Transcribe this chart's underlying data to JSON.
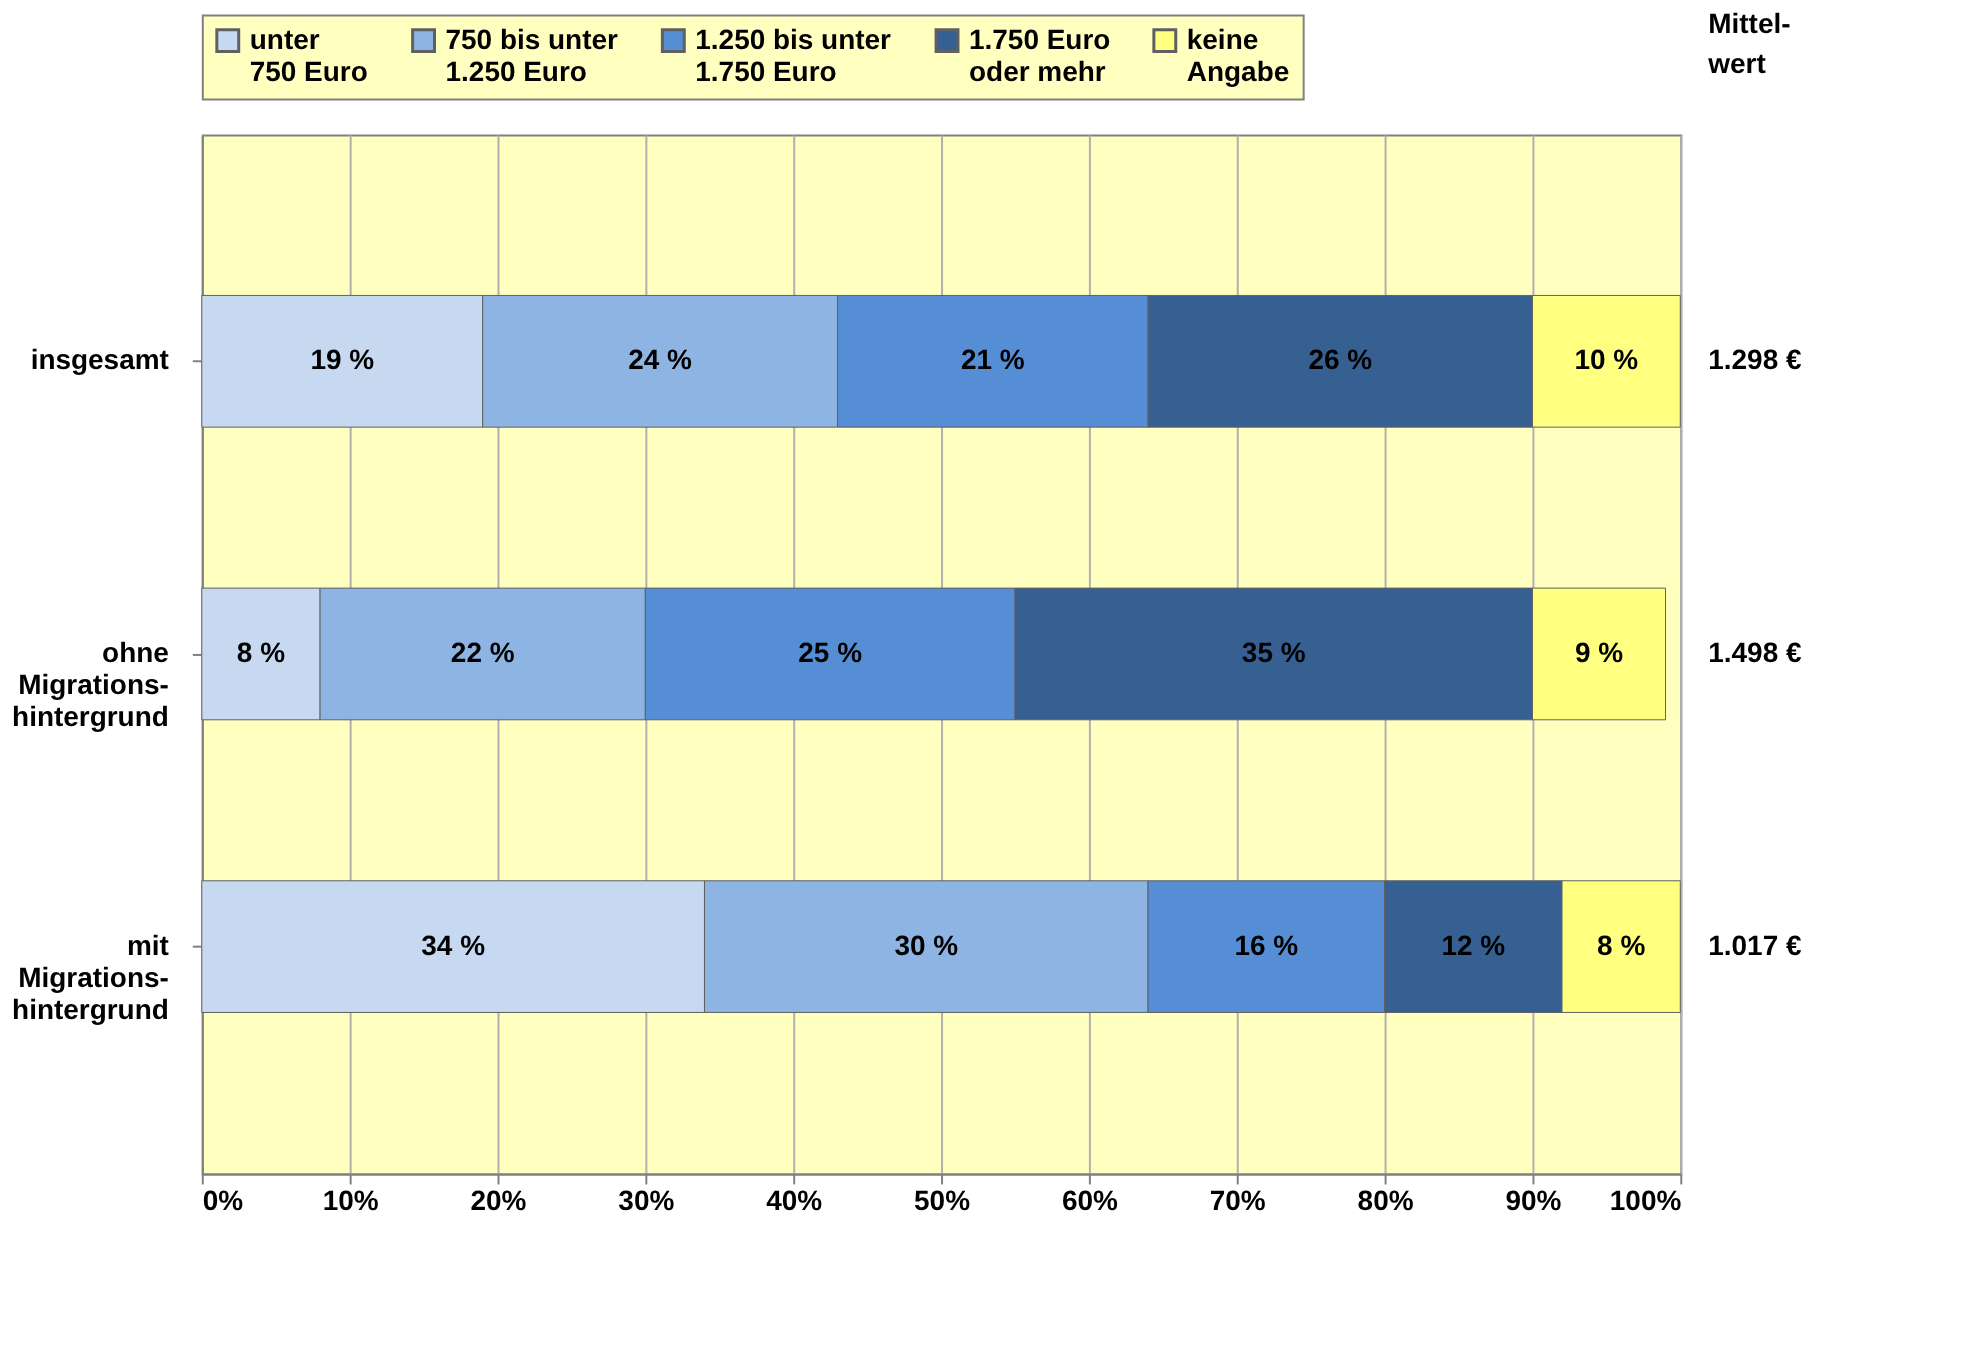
{
  "chart_data": {
    "type": "bar",
    "orientation": "horizontal",
    "stacked": true,
    "categories": [
      "insgesamt",
      "ohne\nMigrations-\nhintergrund",
      "mit\nMigrations-\nhintergrund"
    ],
    "series": [
      {
        "name": "unter\n750 Euro",
        "color": "#c6d9f1",
        "values": [
          19,
          8,
          34
        ],
        "value_labels": [
          "19 %",
          "8 %",
          "34 %"
        ]
      },
      {
        "name": "750 bis unter\n1.250 Euro",
        "color": "#8db4e2",
        "values": [
          24,
          22,
          30
        ],
        "value_labels": [
          "24 %",
          "22 %",
          "30 %"
        ]
      },
      {
        "name": "1.250 bis unter\n1.750 Euro",
        "color": "#558ed5",
        "values": [
          21,
          25,
          16
        ],
        "value_labels": [
          "21 %",
          "25 %",
          "16 %"
        ]
      },
      {
        "name": "1.750 Euro\noder mehr",
        "color": "#366092",
        "values": [
          26,
          35,
          12
        ],
        "value_labels": [
          "26 %",
          "35 %",
          "12 %"
        ]
      },
      {
        "name": "keine\nAngabe",
        "color": "#ffff80",
        "values": [
          10,
          9,
          8
        ],
        "value_labels": [
          "10 %",
          "9 %",
          "8 %"
        ]
      }
    ],
    "xlim": [
      0,
      100
    ],
    "xticks": [
      {
        "value": 0,
        "label": "0%"
      },
      {
        "value": 10,
        "label": "10%"
      },
      {
        "value": 20,
        "label": "20%"
      },
      {
        "value": 30,
        "label": "30%"
      },
      {
        "value": 40,
        "label": "40%"
      },
      {
        "value": 50,
        "label": "50%"
      },
      {
        "value": 60,
        "label": "60%"
      },
      {
        "value": 70,
        "label": "70%"
      },
      {
        "value": 80,
        "label": "80%"
      },
      {
        "value": 90,
        "label": "90%"
      },
      {
        "value": 100,
        "label": "100%"
      }
    ],
    "grid": "x",
    "legend": "top",
    "annotations": [
      "Mittel-\nwert",
      "1.298 €",
      "1.498 €",
      "1.017 €"
    ]
  }
}
